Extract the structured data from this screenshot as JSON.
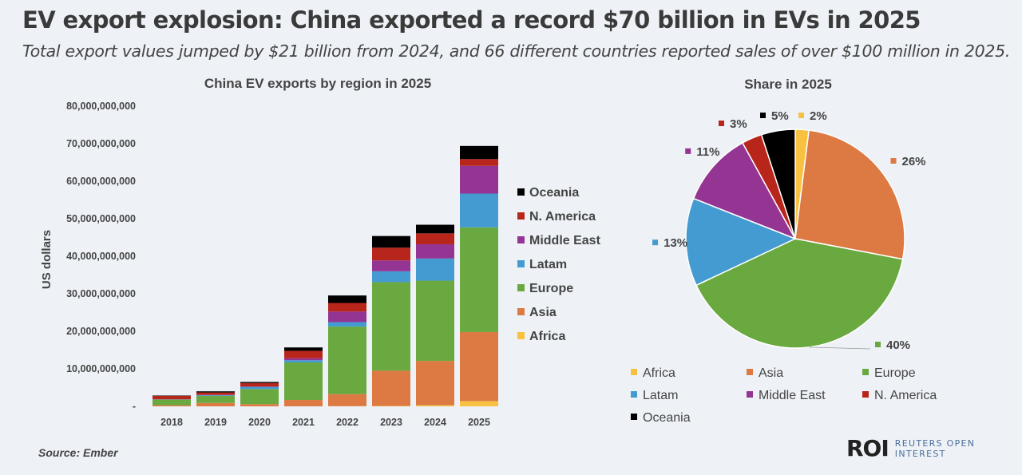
{
  "header": {
    "title": "EV export explosion: China exported a record $70 billion in EVs in 2025",
    "subtitle": "Total export values jumped by $21 billion from 2024, and 66 different countries reported sales of over $100 million in 2025."
  },
  "source": "Source:  Ember",
  "logo": {
    "mark": "ROI",
    "line1": "REUTERS OPEN",
    "line2": "INTEREST"
  },
  "chart_data": [
    {
      "type": "bar",
      "stacked": true,
      "title": "China EV exports by region in 2025",
      "xlabel": "",
      "ylabel": "US dollars",
      "ylim": [
        0,
        80000000000
      ],
      "yticks": [
        0,
        10000000000,
        20000000000,
        30000000000,
        40000000000,
        50000000000,
        60000000000,
        70000000000,
        80000000000
      ],
      "ytick_labels": [
        "-",
        "10,000,000,000",
        "20,000,000,000",
        "30,000,000,000",
        "40,000,000,000",
        "50,000,000,000",
        "60,000,000,000",
        "70,000,000,000",
        "80,000,000,000"
      ],
      "grid": false,
      "legend_position": "right",
      "categories": [
        "2018",
        "2019",
        "2020",
        "2021",
        "2022",
        "2023",
        "2024",
        "2025"
      ],
      "series": [
        {
          "name": "Africa",
          "color": "#f7c242",
          "values": [
            0,
            0,
            0,
            0,
            50000000,
            100000000,
            300000000,
            1400000000
          ]
        },
        {
          "name": "Asia",
          "color": "#dd7a43",
          "values": [
            300000000,
            900000000,
            600000000,
            1700000000,
            3200000000,
            9400000000,
            11800000000,
            18400000000
          ]
        },
        {
          "name": "Europe",
          "color": "#6aa840",
          "values": [
            1500000000,
            1900000000,
            4000000000,
            10000000000,
            18000000000,
            23600000000,
            21400000000,
            27900000000
          ]
        },
        {
          "name": "Latam",
          "color": "#449bd1",
          "values": [
            50000000,
            200000000,
            600000000,
            600000000,
            1200000000,
            2900000000,
            5900000000,
            9000000000
          ]
        },
        {
          "name": "Middle East",
          "color": "#943593",
          "values": [
            50000000,
            50000000,
            100000000,
            500000000,
            2800000000,
            2900000000,
            3800000000,
            7400000000
          ]
        },
        {
          "name": "N. America",
          "color": "#b8251b",
          "values": [
            900000000,
            650000000,
            900000000,
            2000000000,
            2300000000,
            3400000000,
            2900000000,
            1800000000
          ]
        },
        {
          "name": "Oceania",
          "color": "#000000",
          "values": [
            100000000,
            300000000,
            300000000,
            900000000,
            2000000000,
            3100000000,
            2300000000,
            3500000000
          ]
        }
      ]
    },
    {
      "type": "pie",
      "title": "Share in 2025",
      "legend_position": "bottom",
      "slices": [
        {
          "name": "Africa",
          "value": 2,
          "label": "2%",
          "color": "#f7c242"
        },
        {
          "name": "Asia",
          "value": 26,
          "label": "26%",
          "color": "#dd7a43"
        },
        {
          "name": "Europe",
          "value": 40,
          "label": "40%",
          "color": "#6aa840"
        },
        {
          "name": "Latam",
          "value": 13,
          "label": "13%",
          "color": "#449bd1"
        },
        {
          "name": "Middle East",
          "value": 11,
          "label": "11%",
          "color": "#943593"
        },
        {
          "name": "N. America",
          "value": 3,
          "label": "3%",
          "color": "#b8251b"
        },
        {
          "name": "Oceania",
          "value": 5,
          "label": "5%",
          "color": "#000000"
        }
      ]
    }
  ]
}
